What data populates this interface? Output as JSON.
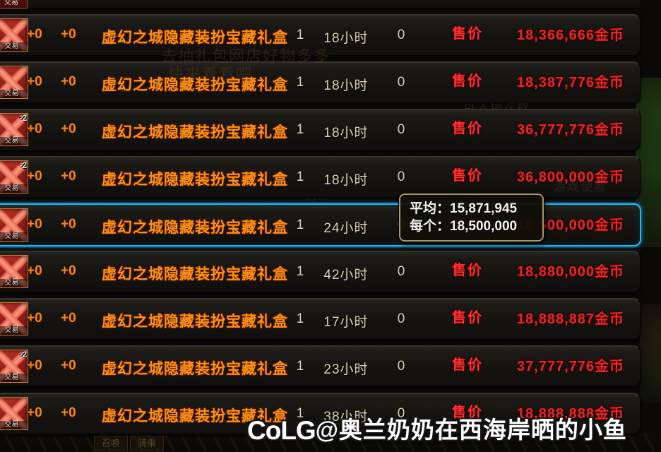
{
  "listing": {
    "price_label": "售价",
    "currency_suffix": "金币",
    "icon_trade_label": "交易",
    "rows": [
      {
        "reinforce1": "+0",
        "reinforce2": "+0",
        "name": "虚幻之城隐藏装扮宝藏礼盒",
        "qty": "1",
        "time": "18小时",
        "other": "0",
        "price": "18,366,666",
        "badge": "",
        "selected": false
      },
      {
        "reinforce1": "+0",
        "reinforce2": "+0",
        "name": "虚幻之城隐藏装扮宝藏礼盒",
        "qty": "1",
        "time": "18小时",
        "other": "0",
        "price": "18,387,776",
        "badge": "",
        "selected": false
      },
      {
        "reinforce1": "+0",
        "reinforce2": "+0",
        "name": "虚幻之城隐藏装扮宝藏礼盒",
        "qty": "1",
        "time": "18小时",
        "other": "0",
        "price": "36,777,776",
        "badge": "-2",
        "selected": false
      },
      {
        "reinforce1": "+0",
        "reinforce2": "+0",
        "name": "虚幻之城隐藏装扮宝藏礼盒",
        "qty": "1",
        "time": "18小时",
        "other": "0",
        "price": "36,800,000",
        "badge": "-2",
        "selected": false
      },
      {
        "reinforce1": "+0",
        "reinforce2": "+0",
        "name": "虚幻之城隐藏装扮宝藏礼盒",
        "qty": "1",
        "time": "24小时",
        "other": "0",
        "price": "18,500,000",
        "badge": "",
        "selected": true
      },
      {
        "reinforce1": "+0",
        "reinforce2": "+0",
        "name": "虚幻之城隐藏装扮宝藏礼盒",
        "qty": "1",
        "time": "42小时",
        "other": "0",
        "price": "18,880,000",
        "badge": "",
        "selected": false
      },
      {
        "reinforce1": "+0",
        "reinforce2": "+0",
        "name": "虚幻之城隐藏装扮宝藏礼盒",
        "qty": "1",
        "time": "17小时",
        "other": "0",
        "price": "18,888,887",
        "badge": "",
        "selected": false
      },
      {
        "reinforce1": "+0",
        "reinforce2": "+0",
        "name": "虚幻之城隐藏装扮宝藏礼盒",
        "qty": "1",
        "time": "23小时",
        "other": "0",
        "price": "37,777,776",
        "badge": "-2",
        "selected": false
      },
      {
        "reinforce1": "+0",
        "reinforce2": "+0",
        "name": "虚幻之城隐藏装扮宝藏礼盒",
        "qty": "1",
        "time": "38小时",
        "other": "0",
        "price": "18,888,888",
        "badge": "",
        "selected": false
      }
    ]
  },
  "tooltip": {
    "lines": [
      "平均：15,871,945",
      "每个：18,500,000"
    ]
  },
  "watermark": {
    "logo": "CoLG",
    "handle": "@奥兰奶奶在西海岸晒的小鱼"
  },
  "background_hints": {
    "promo_line1": "去抽礼包网店好物多多",
    "promo_line2": "快来看看吧",
    "entry_count": "可入场次数",
    "phantom": "幻影",
    "messenger": "游戏使者",
    "tab_summon": "召唤",
    "tab_ride": "骑乘"
  },
  "colors": {
    "item_name_orange": "#ff9212",
    "price_red": "#e52828",
    "price_label_red": "#ff3030",
    "neutral_cream": "#ddd5b6",
    "highlight_cyan": "#2cb8ec",
    "tooltip_border": "#a99a68"
  }
}
